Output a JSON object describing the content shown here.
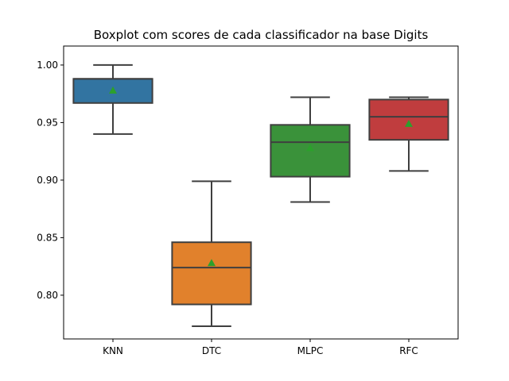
{
  "chart_data": {
    "type": "boxplot",
    "title": "Boxplot com scores de cada classificador na base Digits",
    "xlabel": "",
    "ylabel": "",
    "ylim": [
      0.762,
      1.0165
    ],
    "yticks": [
      0.8,
      0.85,
      0.9,
      0.95,
      1.0
    ],
    "ytick_labels": [
      "0.80",
      "0.85",
      "0.90",
      "0.95",
      "1.00"
    ],
    "grid": false,
    "categories": [
      "KNN",
      "DTC",
      "MLPC",
      "RFC"
    ],
    "boxes": [
      {
        "category": "KNN",
        "whisker_low": 0.94,
        "q1": 0.967,
        "median": 0.988,
        "q3": 0.988,
        "whisker_high": 1.0,
        "mean": 0.978,
        "color": "#3274a1"
      },
      {
        "category": "DTC",
        "whisker_low": 0.773,
        "q1": 0.792,
        "median": 0.824,
        "q3": 0.846,
        "whisker_high": 0.899,
        "mean": 0.828,
        "color": "#e1812c"
      },
      {
        "category": "MLPC",
        "whisker_low": 0.881,
        "q1": 0.903,
        "median": 0.933,
        "q3": 0.948,
        "whisker_high": 0.972,
        "mean": 0.928,
        "color": "#3a923a"
      },
      {
        "category": "RFC",
        "whisker_low": 0.908,
        "q1": 0.935,
        "median": 0.955,
        "q3": 0.97,
        "whisker_high": 0.972,
        "mean": 0.949,
        "color": "#c03d3e"
      }
    ],
    "line_color": "#3f3f3f",
    "mean_marker_color": "#2ca02c"
  }
}
